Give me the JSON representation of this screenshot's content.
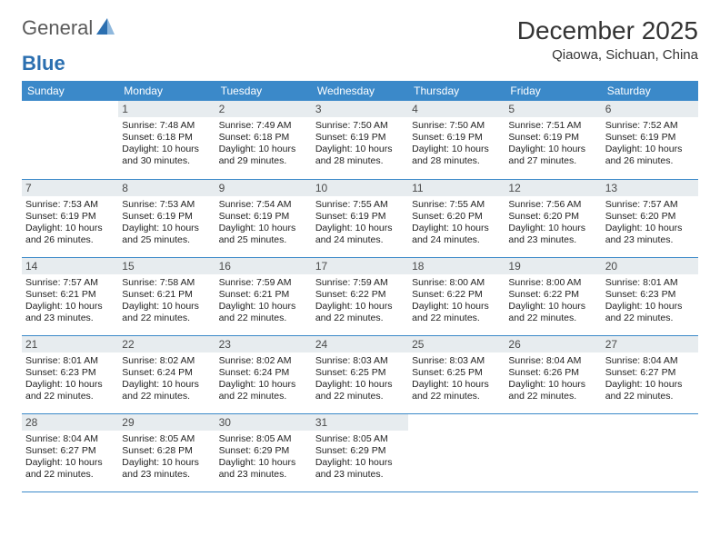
{
  "brand": {
    "general": "General",
    "blue": "Blue"
  },
  "title": "December 2025",
  "location": "Qiaowa, Sichuan, China",
  "colors": {
    "header_bg": "#3b89c9",
    "header_text": "#ffffff",
    "daynum_bg": "#e7ecef",
    "border": "#3b89c9",
    "logo_gray": "#5a5a5a",
    "logo_blue": "#2b6fb0"
  },
  "weekdays": [
    "Sunday",
    "Monday",
    "Tuesday",
    "Wednesday",
    "Thursday",
    "Friday",
    "Saturday"
  ],
  "leading_blanks": 1,
  "days": [
    {
      "n": 1,
      "sunrise": "7:48 AM",
      "sunset": "6:18 PM",
      "daylight": "10 hours and 30 minutes."
    },
    {
      "n": 2,
      "sunrise": "7:49 AM",
      "sunset": "6:18 PM",
      "daylight": "10 hours and 29 minutes."
    },
    {
      "n": 3,
      "sunrise": "7:50 AM",
      "sunset": "6:19 PM",
      "daylight": "10 hours and 28 minutes."
    },
    {
      "n": 4,
      "sunrise": "7:50 AM",
      "sunset": "6:19 PM",
      "daylight": "10 hours and 28 minutes."
    },
    {
      "n": 5,
      "sunrise": "7:51 AM",
      "sunset": "6:19 PM",
      "daylight": "10 hours and 27 minutes."
    },
    {
      "n": 6,
      "sunrise": "7:52 AM",
      "sunset": "6:19 PM",
      "daylight": "10 hours and 26 minutes."
    },
    {
      "n": 7,
      "sunrise": "7:53 AM",
      "sunset": "6:19 PM",
      "daylight": "10 hours and 26 minutes."
    },
    {
      "n": 8,
      "sunrise": "7:53 AM",
      "sunset": "6:19 PM",
      "daylight": "10 hours and 25 minutes."
    },
    {
      "n": 9,
      "sunrise": "7:54 AM",
      "sunset": "6:19 PM",
      "daylight": "10 hours and 25 minutes."
    },
    {
      "n": 10,
      "sunrise": "7:55 AM",
      "sunset": "6:19 PM",
      "daylight": "10 hours and 24 minutes."
    },
    {
      "n": 11,
      "sunrise": "7:55 AM",
      "sunset": "6:20 PM",
      "daylight": "10 hours and 24 minutes."
    },
    {
      "n": 12,
      "sunrise": "7:56 AM",
      "sunset": "6:20 PM",
      "daylight": "10 hours and 23 minutes."
    },
    {
      "n": 13,
      "sunrise": "7:57 AM",
      "sunset": "6:20 PM",
      "daylight": "10 hours and 23 minutes."
    },
    {
      "n": 14,
      "sunrise": "7:57 AM",
      "sunset": "6:21 PM",
      "daylight": "10 hours and 23 minutes."
    },
    {
      "n": 15,
      "sunrise": "7:58 AM",
      "sunset": "6:21 PM",
      "daylight": "10 hours and 22 minutes."
    },
    {
      "n": 16,
      "sunrise": "7:59 AM",
      "sunset": "6:21 PM",
      "daylight": "10 hours and 22 minutes."
    },
    {
      "n": 17,
      "sunrise": "7:59 AM",
      "sunset": "6:22 PM",
      "daylight": "10 hours and 22 minutes."
    },
    {
      "n": 18,
      "sunrise": "8:00 AM",
      "sunset": "6:22 PM",
      "daylight": "10 hours and 22 minutes."
    },
    {
      "n": 19,
      "sunrise": "8:00 AM",
      "sunset": "6:22 PM",
      "daylight": "10 hours and 22 minutes."
    },
    {
      "n": 20,
      "sunrise": "8:01 AM",
      "sunset": "6:23 PM",
      "daylight": "10 hours and 22 minutes."
    },
    {
      "n": 21,
      "sunrise": "8:01 AM",
      "sunset": "6:23 PM",
      "daylight": "10 hours and 22 minutes."
    },
    {
      "n": 22,
      "sunrise": "8:02 AM",
      "sunset": "6:24 PM",
      "daylight": "10 hours and 22 minutes."
    },
    {
      "n": 23,
      "sunrise": "8:02 AM",
      "sunset": "6:24 PM",
      "daylight": "10 hours and 22 minutes."
    },
    {
      "n": 24,
      "sunrise": "8:03 AM",
      "sunset": "6:25 PM",
      "daylight": "10 hours and 22 minutes."
    },
    {
      "n": 25,
      "sunrise": "8:03 AM",
      "sunset": "6:25 PM",
      "daylight": "10 hours and 22 minutes."
    },
    {
      "n": 26,
      "sunrise": "8:04 AM",
      "sunset": "6:26 PM",
      "daylight": "10 hours and 22 minutes."
    },
    {
      "n": 27,
      "sunrise": "8:04 AM",
      "sunset": "6:27 PM",
      "daylight": "10 hours and 22 minutes."
    },
    {
      "n": 28,
      "sunrise": "8:04 AM",
      "sunset": "6:27 PM",
      "daylight": "10 hours and 22 minutes."
    },
    {
      "n": 29,
      "sunrise": "8:05 AM",
      "sunset": "6:28 PM",
      "daylight": "10 hours and 23 minutes."
    },
    {
      "n": 30,
      "sunrise": "8:05 AM",
      "sunset": "6:29 PM",
      "daylight": "10 hours and 23 minutes."
    },
    {
      "n": 31,
      "sunrise": "8:05 AM",
      "sunset": "6:29 PM",
      "daylight": "10 hours and 23 minutes."
    }
  ],
  "labels": {
    "sunrise": "Sunrise:",
    "sunset": "Sunset:",
    "daylight": "Daylight:"
  }
}
